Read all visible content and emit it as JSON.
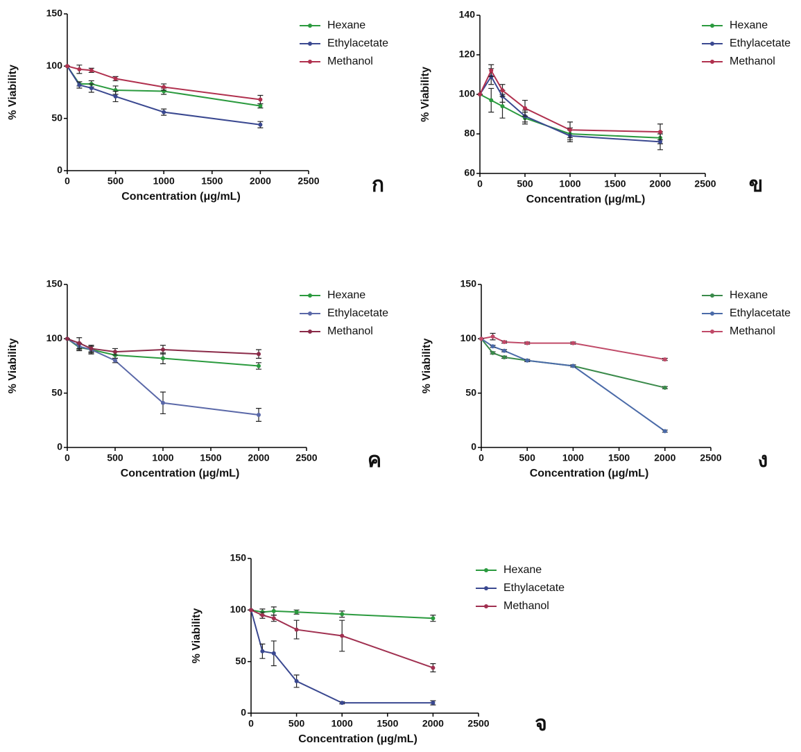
{
  "chart_data": [
    {
      "type": "line",
      "label": "ก",
      "x_label": "Concentration (μg/mL)",
      "y_label": "% Viability",
      "x": [
        0,
        125,
        250,
        500,
        1000,
        2000
      ],
      "xlim": [
        0,
        2500
      ],
      "xticks": [
        0,
        500,
        1000,
        1500,
        2000,
        2500
      ],
      "ylim": [
        0,
        150
      ],
      "yticks": [
        0,
        50,
        100,
        150
      ],
      "series": [
        {
          "name": "Hexane",
          "color": "#2a9a3e",
          "values": [
            100,
            83,
            83,
            77,
            76,
            62
          ],
          "errors": [
            0,
            2,
            3,
            4,
            3,
            2
          ]
        },
        {
          "name": "Ethylacetate",
          "color": "#3a4890",
          "values": [
            100,
            82,
            79,
            71,
            56,
            44
          ],
          "errors": [
            0,
            3,
            4,
            5,
            3,
            3
          ]
        },
        {
          "name": "Methanol",
          "color": "#b0304e",
          "values": [
            100,
            97,
            96,
            88,
            80,
            68
          ],
          "errors": [
            0,
            4,
            2,
            2,
            3,
            4
          ]
        }
      ]
    },
    {
      "type": "line",
      "label": "ข",
      "x_label": "Concentration (μg/mL)",
      "y_label": "% Viability",
      "x": [
        0,
        125,
        250,
        500,
        1000,
        2000
      ],
      "xlim": [
        0,
        2500
      ],
      "xticks": [
        0,
        500,
        1000,
        1500,
        2000,
        2500
      ],
      "ylim": [
        60,
        140
      ],
      "yticks": [
        60,
        80,
        100,
        120,
        140
      ],
      "series": [
        {
          "name": "Hexane",
          "color": "#2a9a3e",
          "values": [
            100,
            97,
            94,
            88,
            80,
            78
          ],
          "errors": [
            0,
            6,
            6,
            3,
            3,
            3
          ]
        },
        {
          "name": "Ethylacetate",
          "color": "#3a4890",
          "values": [
            100,
            109,
            99,
            89,
            79,
            76
          ],
          "errors": [
            0,
            4,
            3,
            3,
            3,
            4
          ]
        },
        {
          "name": "Methanol",
          "color": "#b0304e",
          "values": [
            100,
            112,
            102,
            93,
            82,
            81
          ],
          "errors": [
            0,
            3,
            3,
            4,
            4,
            4
          ]
        }
      ]
    },
    {
      "type": "line",
      "label": "ค",
      "x_label": "Concentration (μg/mL)",
      "y_label": "% Viability",
      "x": [
        0,
        125,
        250,
        500,
        1000,
        2000
      ],
      "xlim": [
        0,
        2500
      ],
      "xticks": [
        0,
        500,
        1000,
        1500,
        2000,
        2500
      ],
      "ylim": [
        0,
        150
      ],
      "yticks": [
        0,
        50,
        100,
        150
      ],
      "series": [
        {
          "name": "Hexane",
          "color": "#2a9a3e",
          "values": [
            100,
            92,
            90,
            85,
            82,
            75
          ],
          "errors": [
            0,
            3,
            4,
            3,
            5,
            3
          ]
        },
        {
          "name": "Ethylacetate",
          "color": "#5a68a8",
          "values": [
            100,
            93,
            90,
            80,
            41,
            30
          ],
          "errors": [
            0,
            3,
            3,
            2,
            10,
            6
          ]
        },
        {
          "name": "Methanol",
          "color": "#8a2a48",
          "values": [
            100,
            96,
            91,
            88,
            90,
            86
          ],
          "errors": [
            0,
            5,
            3,
            3,
            4,
            4
          ]
        }
      ]
    },
    {
      "type": "line",
      "label": "ง",
      "x_label": "Concentration (μg/mL)",
      "y_label": "% Viability",
      "x": [
        0,
        125,
        250,
        500,
        1000,
        2000
      ],
      "xlim": [
        0,
        2500
      ],
      "xticks": [
        0,
        500,
        1000,
        1500,
        2000,
        2500
      ],
      "ylim": [
        0,
        150
      ],
      "yticks": [
        0,
        50,
        100,
        150
      ],
      "series": [
        {
          "name": "Hexane",
          "color": "#3a8a4a",
          "values": [
            100,
            87,
            83,
            80,
            75,
            55
          ],
          "errors": [
            0,
            1,
            1,
            1,
            1,
            1
          ]
        },
        {
          "name": "Ethylacetate",
          "color": "#4a6aa8",
          "values": [
            100,
            93,
            89,
            80,
            75,
            15
          ],
          "errors": [
            0,
            1,
            1,
            1,
            1,
            1
          ]
        },
        {
          "name": "Methanol",
          "color": "#c04a68",
          "values": [
            100,
            102,
            97,
            96,
            96,
            81
          ],
          "errors": [
            0,
            3,
            1,
            1,
            1,
            1
          ]
        }
      ]
    },
    {
      "type": "line",
      "label": "จ",
      "x_label": "Concentration (μg/mL)",
      "y_label": "% Viability",
      "x": [
        0,
        125,
        250,
        500,
        1000,
        2000
      ],
      "xlim": [
        0,
        2500
      ],
      "xticks": [
        0,
        500,
        1000,
        1500,
        2000,
        2500
      ],
      "ylim": [
        0,
        150
      ],
      "yticks": [
        0,
        50,
        100,
        150
      ],
      "series": [
        {
          "name": "Hexane",
          "color": "#2a9a3e",
          "values": [
            100,
            98,
            99,
            98,
            96,
            92
          ],
          "errors": [
            0,
            3,
            4,
            2,
            3,
            3
          ]
        },
        {
          "name": "Ethylacetate",
          "color": "#3a4890",
          "values": [
            100,
            60,
            58,
            31,
            10,
            10
          ],
          "errors": [
            0,
            7,
            12,
            6,
            1,
            2
          ]
        },
        {
          "name": "Methanol",
          "color": "#a03050",
          "values": [
            100,
            95,
            92,
            81,
            75,
            44
          ],
          "errors": [
            0,
            3,
            3,
            9,
            15,
            4
          ]
        }
      ]
    }
  ]
}
